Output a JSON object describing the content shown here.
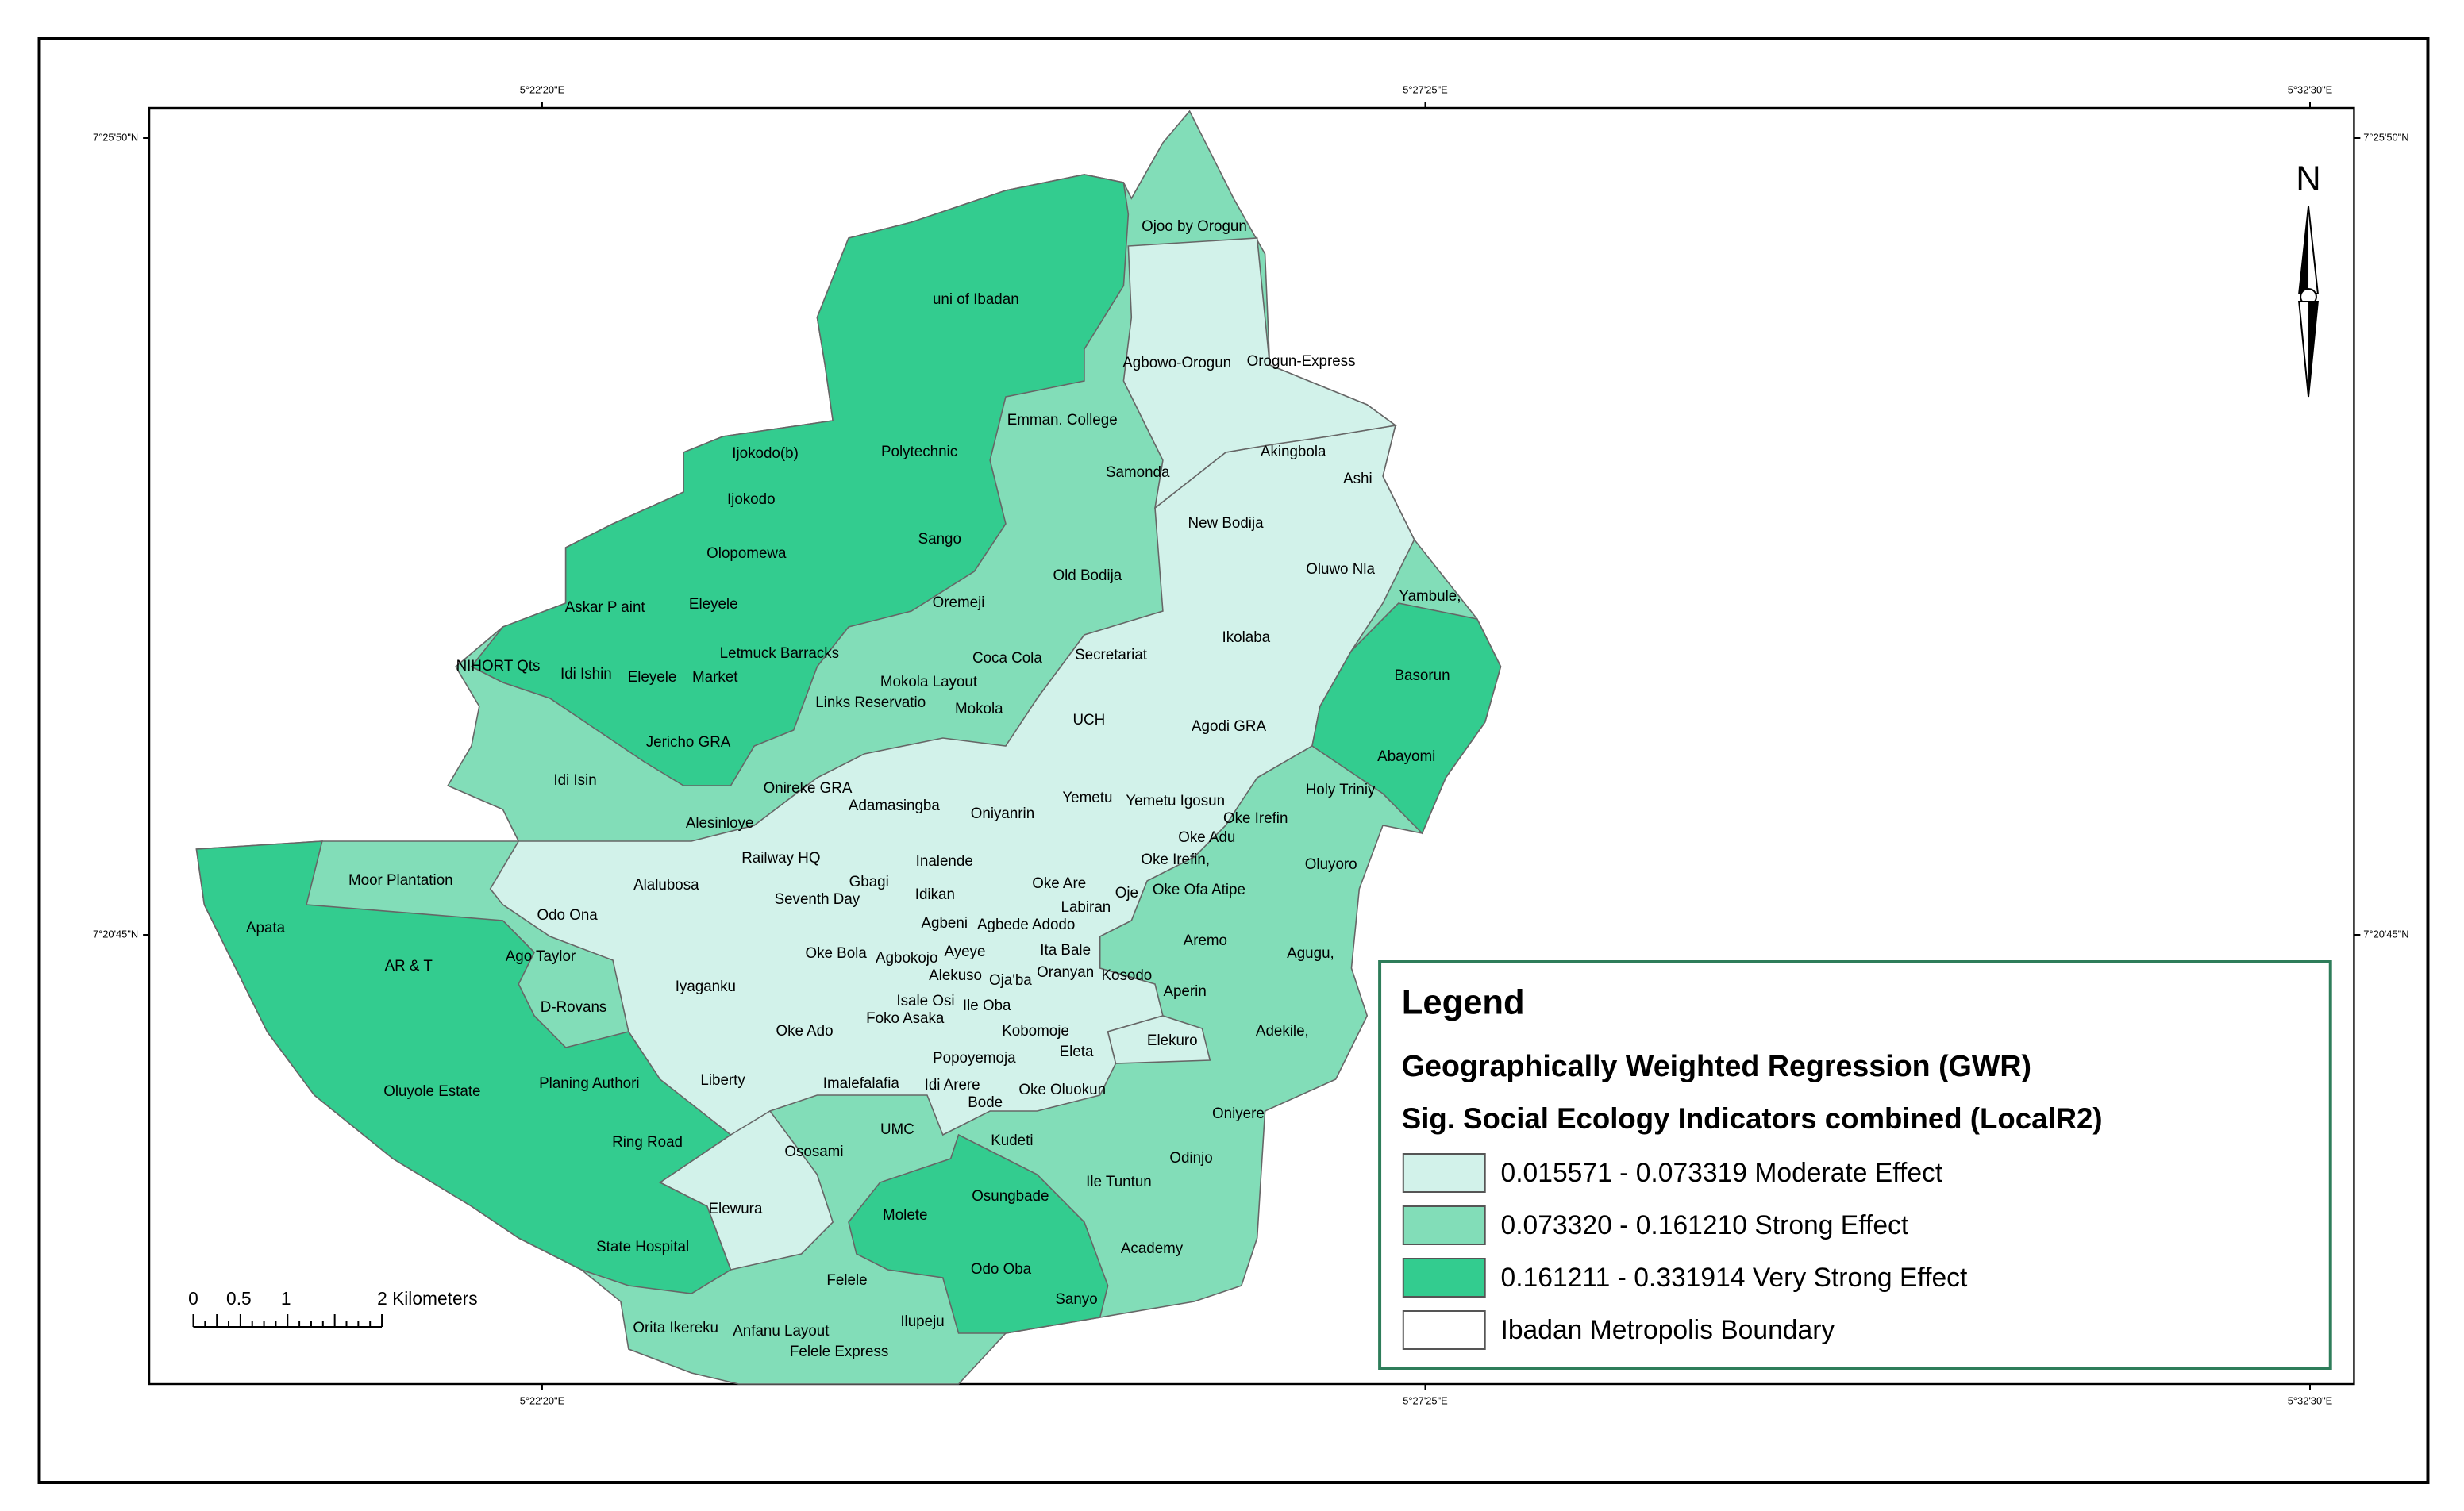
{
  "coordinates": {
    "top": [
      "5°22'20\"E",
      "5°27'25\"E",
      "5°32'30\"E"
    ],
    "bottom": [
      "5°22'20\"E",
      "5°27'25\"E",
      "5°32'30\"E"
    ],
    "left": [
      "7°25'50\"N",
      "7°20'45\"N"
    ],
    "right": [
      "7°25'50\"N",
      "7°20'45\"N"
    ]
  },
  "north": "N",
  "scale_bar": [
    "0",
    "0.5",
    "1",
    "2 Kilometers"
  ],
  "places": [
    "Ojoo by Orogun",
    "uni of Ibadan",
    "Agbowo-Orogun",
    "Orogun-Express",
    "Emman. College",
    "Ijokodo(b)",
    "Polytechnic",
    "Akingbola",
    "Samonda",
    "Ashi",
    "Ijokodo",
    "New Bodija",
    "Sango",
    "Olopomewa",
    "Old Bodija",
    "Oluwo Nla",
    "Askar P aint",
    "Eleyele",
    "Oremeji",
    "Yambule,",
    "Ikolaba",
    "Letmuck Barracks",
    "Secretariat",
    "Coca Cola",
    "NIHORT Qts",
    "Idi Ishin",
    "Eleyele",
    "Market",
    "Mokola Layout",
    "Basorun",
    "Links Reservatio",
    "Mokola",
    "UCH",
    "Agodi GRA",
    "Jericho GRA",
    "Abayomi",
    "Idi Isin",
    "Onireke GRA",
    "Holy Triniy",
    "Yemetu",
    "Yemetu Igosun",
    "Adamasingba",
    "Oniyanrin",
    "Oke Irefin",
    "Alesinloye",
    "Oke Adu",
    "Railway HQ",
    "Inalende",
    "Oke Irefin,",
    "Oluyoro",
    "Moor Plantation",
    "Alalubosa",
    "Gbagi",
    "Oke Are",
    "Oje",
    "Oke Ofa Atipe",
    "Idikan",
    "Seventh Day",
    "Labiran",
    "Odo Ona",
    "Apata",
    "Agbeni",
    "Agbede Adodo",
    "Aremo",
    "AR & T",
    "Ago Taylor",
    "Oke Bola",
    "Agbokojo",
    "Ayeye",
    "Ita Bale",
    "Agugu,",
    "Alekuso",
    "Oranyan",
    "Kosodo",
    "Oja'ba",
    "Iyaganku",
    "Aperin",
    "D-Rovans",
    "Isale Osi",
    "Ile Oba",
    "Foko Asaka",
    "Oke Ado",
    "Kobomoje",
    "Adekile,",
    "Elekuro",
    "Eleta",
    "Popoyemoja",
    "Planing Authori",
    "Liberty",
    "Imalefalafia",
    "Idi Arere",
    "Oke Oluokun",
    "Oluyole Estate",
    "Bode",
    "Oniyere",
    "Ring Road",
    "UMC",
    "Kudeti",
    "Ososami",
    "Odinjo",
    "Ile  Tuntun",
    "Osungbade",
    "Elewura",
    "Molete",
    "Academy",
    "State Hospital",
    "Odo Oba",
    "Felele",
    "Sanyo",
    "Orita Ikereku",
    "Anfanu Layout",
    "Ilupeju",
    "Felele Express"
  ],
  "legend": {
    "title": "Legend",
    "heading": "Geographically Weighted Regression (GWR)",
    "subheading": "Sig. Social Ecology Indicators combined  (LocalR2)",
    "items": [
      {
        "label": "0.015571 - 0.073319   Moderate Effect",
        "color": "#d2f2ea"
      },
      {
        "label": "0.073320 - 0.161210  Strong Effect",
        "color": "#82ddb8"
      },
      {
        "label": "0.161211 - 0.331914  Very Strong Effect",
        "color": "#33cc8f"
      },
      {
        "label": "Ibadan Metropolis Boundary",
        "color": "#ffffff"
      }
    ]
  }
}
